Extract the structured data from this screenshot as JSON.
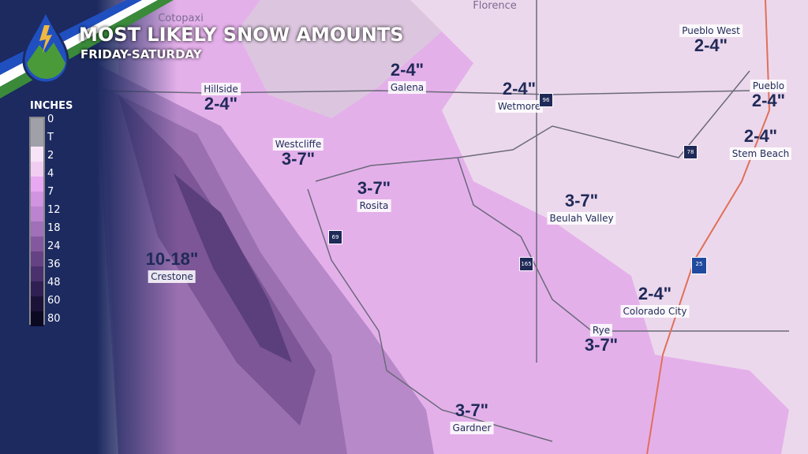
{
  "title": "MOST LIKELY SNOW AMOUNTS",
  "subtitle": "FRIDAY-SATURDAY",
  "legend": {
    "title": "INCHES",
    "labels": [
      "0",
      "T",
      "2",
      "4",
      "7",
      "12",
      "18",
      "24",
      "36",
      "48",
      "60",
      "80"
    ],
    "colors": [
      "#a0a0a8",
      "#f8e4f8",
      "#f2cdf2",
      "#e8a8f2",
      "#d094e0",
      "#bc84d0",
      "#a070b8",
      "#84589e",
      "#654284",
      "#4a306c",
      "#301f52",
      "#1b1238",
      "#0b0822"
    ]
  },
  "labels": [
    {
      "town": "Cotopaxi",
      "amount": ""
    },
    {
      "town": "Florence",
      "amount": ""
    },
    {
      "town": "Pueblo West",
      "amount": "2-4\""
    },
    {
      "town": "Galena",
      "amount": "2-4\""
    },
    {
      "town": "Hillside",
      "amount": "2-4\""
    },
    {
      "town": "Wetmore",
      "amount": "2-4\""
    },
    {
      "town": "Pueblo",
      "amount": "2-4\""
    },
    {
      "town": "Stem Beach",
      "amount": "2-4\""
    },
    {
      "town": "Westcliffe",
      "amount": "3-7\""
    },
    {
      "town": "Rosita",
      "amount": "3-7\""
    },
    {
      "town": "Beulah Valley",
      "amount": "3-7\""
    },
    {
      "town": "Crestone",
      "amount": "10-18\""
    },
    {
      "town": "Colorado City",
      "amount": "2-4\""
    },
    {
      "town": "Rye",
      "amount": "3-7\""
    },
    {
      "town": "Gardner",
      "amount": "3-7\""
    }
  ],
  "highways": [
    "96",
    "78",
    "69",
    "165",
    "25"
  ]
}
